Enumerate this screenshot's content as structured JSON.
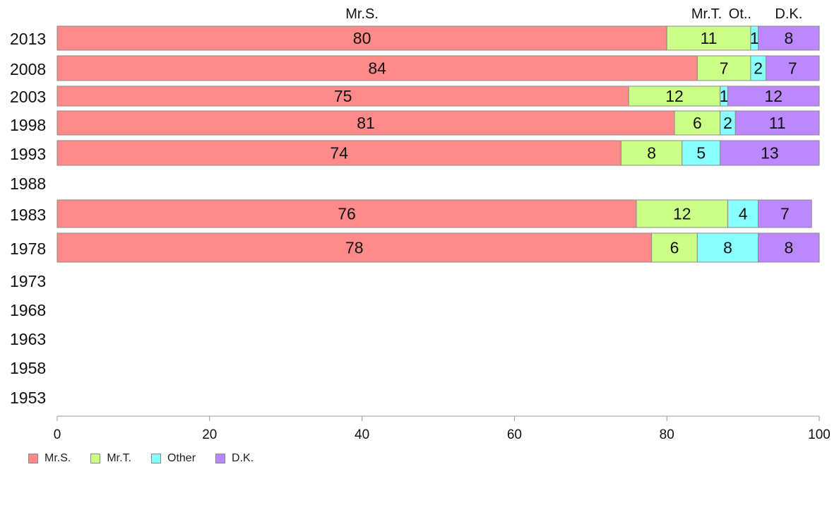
{
  "chart_data": {
    "type": "bar",
    "orientation": "horizontal",
    "stacked": true,
    "categories": [
      "2013",
      "2008",
      "2003",
      "1998",
      "1993",
      "1988",
      "1983",
      "1978",
      "1973",
      "1968",
      "1963",
      "1958",
      "1953"
    ],
    "series": [
      {
        "name": "Mr.S.",
        "header": "Mr.S.",
        "color": "#ff8a8a",
        "values": [
          80,
          84,
          75,
          81,
          74,
          null,
          76,
          78,
          null,
          null,
          null,
          null,
          null
        ]
      },
      {
        "name": "Mr.T.",
        "header": "Mr.T.",
        "color": "#ccff88",
        "values": [
          11,
          7,
          12,
          6,
          8,
          null,
          12,
          6,
          null,
          null,
          null,
          null,
          null
        ]
      },
      {
        "name": "Other",
        "header": "Ot..",
        "color": "#88ffff",
        "values": [
          1,
          2,
          1,
          2,
          5,
          null,
          4,
          8,
          null,
          null,
          null,
          null,
          null
        ]
      },
      {
        "name": "D.K.",
        "header": "D.K.",
        "color": "#bb88ff",
        "values": [
          8,
          7,
          12,
          11,
          13,
          null,
          7,
          8,
          null,
          null,
          null,
          null,
          null
        ]
      }
    ],
    "xlim": [
      0,
      100
    ],
    "xticks": [
      "0",
      "20",
      "40",
      "60",
      "80",
      "100"
    ],
    "grid": false,
    "legend_position": "bottom-left"
  }
}
